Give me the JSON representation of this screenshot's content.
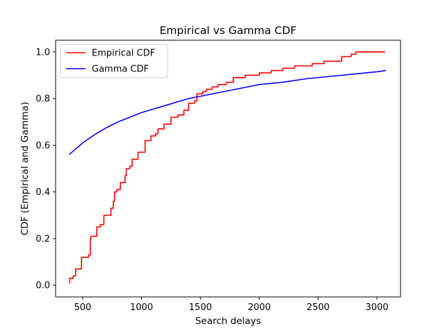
{
  "chart_data": {
    "type": "line",
    "title": "Empirical vs Gamma CDF",
    "xlabel": "Search delays",
    "ylabel": "CDF (Empirical and Gamma)",
    "xlim": [
      270,
      3200
    ],
    "ylim": [
      -0.05,
      1.05
    ],
    "xticks": [
      500,
      1000,
      1500,
      2000,
      2500,
      3000
    ],
    "yticks": [
      0.0,
      0.2,
      0.4,
      0.6,
      0.8,
      1.0
    ],
    "xtick_labels": [
      "500",
      "1000",
      "1500",
      "2000",
      "2500",
      "3000"
    ],
    "ytick_labels": [
      "0.0",
      "0.2",
      "0.4",
      "0.6",
      "0.8",
      "1.0"
    ],
    "grid": false,
    "legend_position": "top-left",
    "series": [
      {
        "name": "Empirical CDF",
        "color": "#ff0000",
        "style": "step",
        "points": [
          [
            385,
            0.01
          ],
          [
            390,
            0.03
          ],
          [
            420,
            0.04
          ],
          [
            440,
            0.07
          ],
          [
            490,
            0.12
          ],
          [
            550,
            0.13
          ],
          [
            565,
            0.2
          ],
          [
            570,
            0.21
          ],
          [
            620,
            0.25
          ],
          [
            650,
            0.26
          ],
          [
            680,
            0.3
          ],
          [
            740,
            0.33
          ],
          [
            760,
            0.36
          ],
          [
            770,
            0.4
          ],
          [
            790,
            0.41
          ],
          [
            820,
            0.44
          ],
          [
            860,
            0.47
          ],
          [
            870,
            0.5
          ],
          [
            900,
            0.51
          ],
          [
            920,
            0.54
          ],
          [
            970,
            0.57
          ],
          [
            1030,
            0.62
          ],
          [
            1080,
            0.64
          ],
          [
            1120,
            0.65
          ],
          [
            1140,
            0.67
          ],
          [
            1190,
            0.69
          ],
          [
            1250,
            0.72
          ],
          [
            1310,
            0.73
          ],
          [
            1360,
            0.75
          ],
          [
            1400,
            0.78
          ],
          [
            1450,
            0.79
          ],
          [
            1470,
            0.82
          ],
          [
            1520,
            0.83
          ],
          [
            1550,
            0.84
          ],
          [
            1600,
            0.85
          ],
          [
            1650,
            0.86
          ],
          [
            1720,
            0.87
          ],
          [
            1780,
            0.89
          ],
          [
            1880,
            0.9
          ],
          [
            2000,
            0.91
          ],
          [
            2100,
            0.92
          ],
          [
            2200,
            0.93
          ],
          [
            2300,
            0.94
          ],
          [
            2450,
            0.95
          ],
          [
            2550,
            0.96
          ],
          [
            2700,
            0.98
          ],
          [
            2780,
            0.99
          ],
          [
            2820,
            1.0
          ],
          [
            3070,
            1.0
          ]
        ]
      },
      {
        "name": "Gamma CDF",
        "color": "#0000ff",
        "style": "line",
        "points": [
          [
            385,
            0.56
          ],
          [
            500,
            0.61
          ],
          [
            600,
            0.645
          ],
          [
            700,
            0.675
          ],
          [
            800,
            0.7
          ],
          [
            900,
            0.72
          ],
          [
            1000,
            0.74
          ],
          [
            1100,
            0.755
          ],
          [
            1200,
            0.77
          ],
          [
            1300,
            0.785
          ],
          [
            1400,
            0.8
          ],
          [
            1500,
            0.81
          ],
          [
            1600,
            0.82
          ],
          [
            1700,
            0.83
          ],
          [
            1800,
            0.84
          ],
          [
            1900,
            0.85
          ],
          [
            2000,
            0.86
          ],
          [
            2200,
            0.87
          ],
          [
            2400,
            0.885
          ],
          [
            2600,
            0.895
          ],
          [
            2800,
            0.905
          ],
          [
            3000,
            0.915
          ],
          [
            3075,
            0.92
          ]
        ]
      }
    ]
  }
}
